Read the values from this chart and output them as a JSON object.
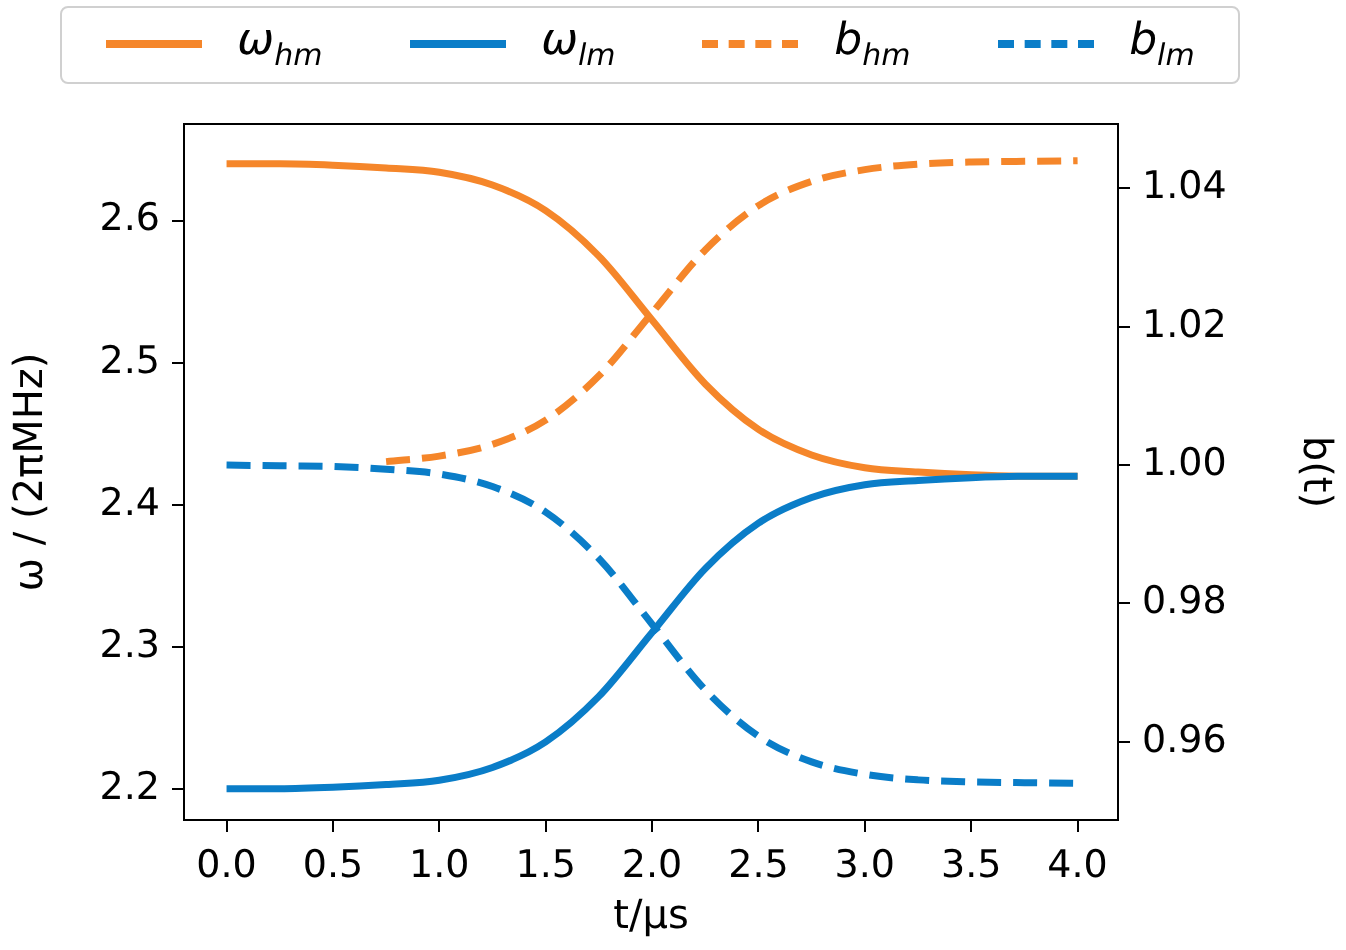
{
  "chart_data": {
    "type": "line",
    "xlabel": "t/μs",
    "ylabel": "ω / (2πMHz)",
    "y2label": "b(t)",
    "legend": "top",
    "grid": false,
    "x": [
      0,
      0.25,
      0.5,
      0.75,
      1,
      1.25,
      1.5,
      1.75,
      2,
      2.25,
      2.5,
      2.75,
      3,
      3.25,
      3.5,
      3.75,
      4
    ],
    "series": [
      {
        "name": "ω$_{hm}$",
        "color": "#f5862a",
        "line_style": "solid",
        "values": [
          2.64,
          2.64,
          2.639,
          2.637,
          2.634,
          2.625,
          2.607,
          2.575,
          2.53,
          2.485,
          2.453,
          2.435,
          2.426,
          2.423,
          2.421,
          2.42,
          2.42
        ]
      },
      {
        "name": "ω$_{lm}$",
        "color": "#0a7dc8",
        "line_style": "solid",
        "values": [
          2.2,
          2.2,
          2.201,
          2.203,
          2.206,
          2.215,
          2.233,
          2.265,
          2.31,
          2.355,
          2.387,
          2.405,
          2.414,
          2.417,
          2.419,
          2.42,
          2.42
        ]
      },
      {
        "name": "b$_{hm}$",
        "color": "#f5862a",
        "line_style": "dashed",
        "axis": "y2",
        "values": [
          null,
          null,
          null,
          1.0005,
          1.0013,
          1.003,
          1.0065,
          1.0129,
          1.022,
          1.0311,
          1.0375,
          1.041,
          1.0427,
          1.0435,
          1.0438,
          1.0439,
          1.044
        ]
      },
      {
        "name": "b$_{lm}$",
        "color": "#0a7dc8",
        "line_style": "dashed",
        "axis": "y2",
        "values": [
          1.0,
          0.9999,
          0.9998,
          0.9994,
          0.9987,
          0.9969,
          0.9932,
          0.9865,
          0.977,
          0.9675,
          0.9608,
          0.9571,
          0.9553,
          0.9545,
          0.9542,
          0.9541,
          0.954
        ]
      }
    ],
    "xlim": [
      -0.2,
      4.19
    ],
    "xticks": [
      {
        "value": 0,
        "label": "0.0"
      },
      {
        "value": 0.5,
        "label": "0.5"
      },
      {
        "value": 1,
        "label": "1.0"
      },
      {
        "value": 1.5,
        "label": "1.5"
      },
      {
        "value": 2,
        "label": "2.0"
      },
      {
        "value": 2.5,
        "label": "2.5"
      },
      {
        "value": 3,
        "label": "3.0"
      },
      {
        "value": 3.5,
        "label": "3.5"
      },
      {
        "value": 4,
        "label": "4.0"
      }
    ],
    "ylim": [
      2.178,
      2.668
    ],
    "yticks": [
      2.2,
      2.3,
      2.4,
      2.5,
      2.6
    ],
    "y2lim": [
      0.9487,
      1.0493
    ],
    "y2ticks": [
      0.96,
      0.98,
      {
        "value": 1,
        "label": "1.00"
      },
      1.02,
      1.04
    ]
  }
}
